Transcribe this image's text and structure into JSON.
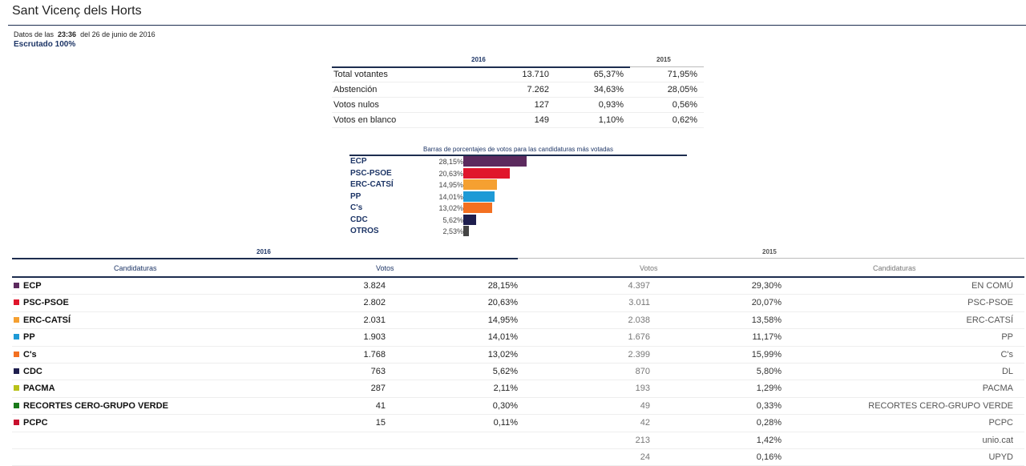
{
  "header": {
    "title": "Sant Vicenç dels Horts",
    "update_prefix": "Datos de las",
    "update_time": "23:36",
    "update_suffix": "del 26 de junio de 2016",
    "scrutiny": "Escrutado 100%"
  },
  "summary": {
    "year_current": "2016",
    "year_previous": "2015",
    "rows": [
      {
        "label": "Total votantes",
        "num": "13.710",
        "pct": "65,37%",
        "pct_prev": "71,95%"
      },
      {
        "label": "Abstención",
        "num": "7.262",
        "pct": "34,63%",
        "pct_prev": "28,05%"
      },
      {
        "label": "Votos nulos",
        "num": "127",
        "pct": "0,93%",
        "pct_prev": "0,56%"
      },
      {
        "label": "Votos en blanco",
        "num": "149",
        "pct": "1,10%",
        "pct_prev": "0,62%"
      }
    ]
  },
  "chart_data": {
    "type": "bar",
    "title": "Barras de porcentajes de votos para las candidaturas más votadas",
    "categories": [
      "ECP",
      "PSC-PSOE",
      "ERC-CATSÍ",
      "PP",
      "C's",
      "CDC",
      "OTROS"
    ],
    "values": [
      28.15,
      20.63,
      14.95,
      14.01,
      13.02,
      5.62,
      2.53
    ],
    "labels": [
      "28,15%",
      "20,63%",
      "14,95%",
      "14,01%",
      "13,02%",
      "5,62%",
      "2,53%"
    ],
    "colors": [
      "#5c2a5e",
      "#e0162b",
      "#f5a031",
      "#1e9ad6",
      "#f37021",
      "#1e1e4e",
      "#444444"
    ],
    "orientation": "horizontal"
  },
  "results": {
    "year_current": "2016",
    "year_previous": "2015",
    "col_candidaturas": "Candidaturas",
    "col_votos": "Votos",
    "col_votos_prev": "Votos",
    "col_candidaturas_prev": "Candidaturas",
    "rows": [
      {
        "party": "ECP",
        "color": "#5c2a5e",
        "votes": "3.824",
        "pct": "28,15%",
        "votes_prev": "4.397",
        "pct_prev": "29,30%",
        "party_prev": "EN COMÚ"
      },
      {
        "party": "PSC-PSOE",
        "color": "#e0162b",
        "votes": "2.802",
        "pct": "20,63%",
        "votes_prev": "3.011",
        "pct_prev": "20,07%",
        "party_prev": "PSC-PSOE"
      },
      {
        "party": "ERC-CATSÍ",
        "color": "#f5a031",
        "votes": "2.031",
        "pct": "14,95%",
        "votes_prev": "2.038",
        "pct_prev": "13,58%",
        "party_prev": "ERC-CATSÍ"
      },
      {
        "party": "PP",
        "color": "#1e9ad6",
        "votes": "1.903",
        "pct": "14,01%",
        "votes_prev": "1.676",
        "pct_prev": "11,17%",
        "party_prev": "PP"
      },
      {
        "party": "C's",
        "color": "#f37021",
        "votes": "1.768",
        "pct": "13,02%",
        "votes_prev": "2.399",
        "pct_prev": "15,99%",
        "party_prev": "C's"
      },
      {
        "party": "CDC",
        "color": "#1e1e4e",
        "votes": "763",
        "pct": "5,62%",
        "votes_prev": "870",
        "pct_prev": "5,80%",
        "party_prev": "DL"
      },
      {
        "party": "PACMA",
        "color": "#b9c21a",
        "votes": "287",
        "pct": "2,11%",
        "votes_prev": "193",
        "pct_prev": "1,29%",
        "party_prev": "PACMA"
      },
      {
        "party": "RECORTES CERO-GRUPO VERDE",
        "color": "#1a7a1a",
        "votes": "41",
        "pct": "0,30%",
        "votes_prev": "49",
        "pct_prev": "0,33%",
        "party_prev": "RECORTES CERO-GRUPO VERDE"
      },
      {
        "party": "PCPC",
        "color": "#c8102e",
        "votes": "15",
        "pct": "0,11%",
        "votes_prev": "42",
        "pct_prev": "0,28%",
        "party_prev": "PCPC"
      },
      {
        "party": "",
        "color": "",
        "votes": "",
        "pct": "",
        "votes_prev": "213",
        "pct_prev": "1,42%",
        "party_prev": "unio.cat"
      },
      {
        "party": "",
        "color": "",
        "votes": "",
        "pct": "",
        "votes_prev": "24",
        "pct_prev": "0,16%",
        "party_prev": "UPYD"
      }
    ]
  }
}
